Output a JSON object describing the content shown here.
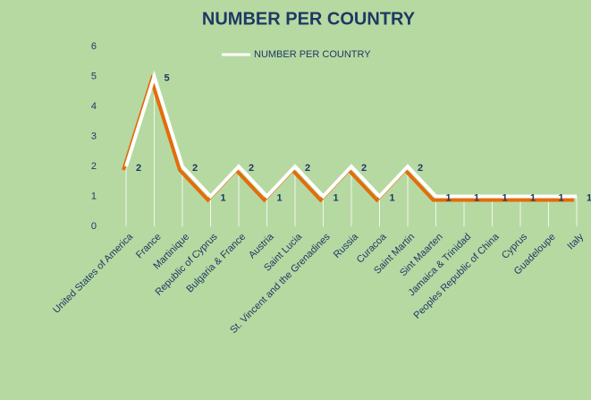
{
  "chart_data": {
    "type": "line",
    "title": "NUMBER PER COUNTRY",
    "categories": [
      "United States of America",
      "France",
      "Martinique",
      "Republic of Cyprus",
      "Bulgaria & France",
      "Austria",
      "Saint Lucia",
      "St. Vincent and the Grenadines",
      "Russia",
      "Curacoa",
      "Saint Martin",
      "Sint Maarten",
      "Jamaica & Trinidad",
      "Peoples Republic of China",
      "Cyprus",
      "Guadeloupe",
      "Italy"
    ],
    "series": [
      {
        "name": "NUMBER PER COUNTRY",
        "color": "#ffffff",
        "shadow_color": "#e46c0a",
        "values": [
          2,
          5,
          2,
          1,
          2,
          1,
          2,
          1,
          2,
          1,
          2,
          1,
          1,
          1,
          1,
          1,
          1
        ]
      }
    ],
    "ylim": [
      0,
      6
    ],
    "yticks": [
      0,
      1,
      2,
      3,
      4,
      5,
      6
    ],
    "grid": false,
    "drop_lines": true,
    "data_labels": true,
    "legend": "top"
  }
}
